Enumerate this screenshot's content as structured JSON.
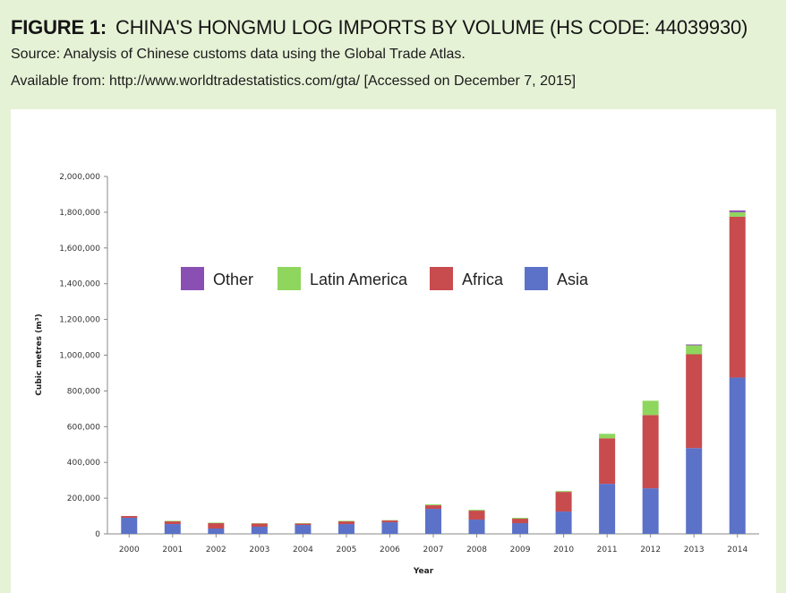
{
  "figure": {
    "number": "FIGURE 1:",
    "title": "CHINA'S HONGMU LOG IMPORTS BY VOLUME (HS CODE: 44039930)",
    "source": "Source: Analysis of Chinese customs data using the Global Trade Atlas.",
    "available": "Available from: http://www.worldtradestatistics.com/gta/  [Accessed on December 7, 2015]"
  },
  "chart_data": {
    "type": "bar",
    "stacked": true,
    "title": "",
    "xlabel": "Year",
    "ylabel": "Cubic metres (m³)",
    "ylim": [
      0,
      2000000
    ],
    "yticks": [
      0,
      200000,
      400000,
      600000,
      800000,
      1000000,
      1200000,
      1400000,
      1600000,
      1800000,
      2000000
    ],
    "ytick_labels": [
      "0",
      "200,000",
      "400,000",
      "600,000",
      "800,000",
      "1,000,000",
      "1,200,000",
      "1,400,000",
      "1,600,000",
      "1,800,000",
      "2,000,000"
    ],
    "categories": [
      "2000",
      "2001",
      "2002",
      "2003",
      "2004",
      "2005",
      "2006",
      "2007",
      "2008",
      "2009",
      "2010",
      "2011",
      "2012",
      "2013",
      "2014"
    ],
    "legend_position": "center-top",
    "series": [
      {
        "name": "Asia",
        "color": "#5b72c8",
        "values": [
          90000,
          55000,
          30000,
          40000,
          50000,
          55000,
          65000,
          140000,
          80000,
          60000,
          125000,
          280000,
          255000,
          480000,
          875000
        ]
      },
      {
        "name": "Africa",
        "color": "#c84b4e",
        "values": [
          10000,
          15000,
          30000,
          18000,
          8000,
          15000,
          10000,
          20000,
          50000,
          25000,
          110000,
          255000,
          410000,
          525000,
          900000
        ]
      },
      {
        "name": "Latin America",
        "color": "#8fd65e",
        "values": [
          0,
          3000,
          3000,
          2000,
          2000,
          3000,
          2000,
          5000,
          5000,
          5000,
          5000,
          25000,
          80000,
          50000,
          25000
        ]
      },
      {
        "name": "Other",
        "color": "#8a4fb2",
        "values": [
          0,
          0,
          0,
          0,
          0,
          0,
          0,
          0,
          0,
          0,
          0,
          0,
          0,
          5000,
          10000
        ]
      }
    ],
    "legend_order": [
      "Other",
      "Latin America",
      "Africa",
      "Asia"
    ]
  }
}
